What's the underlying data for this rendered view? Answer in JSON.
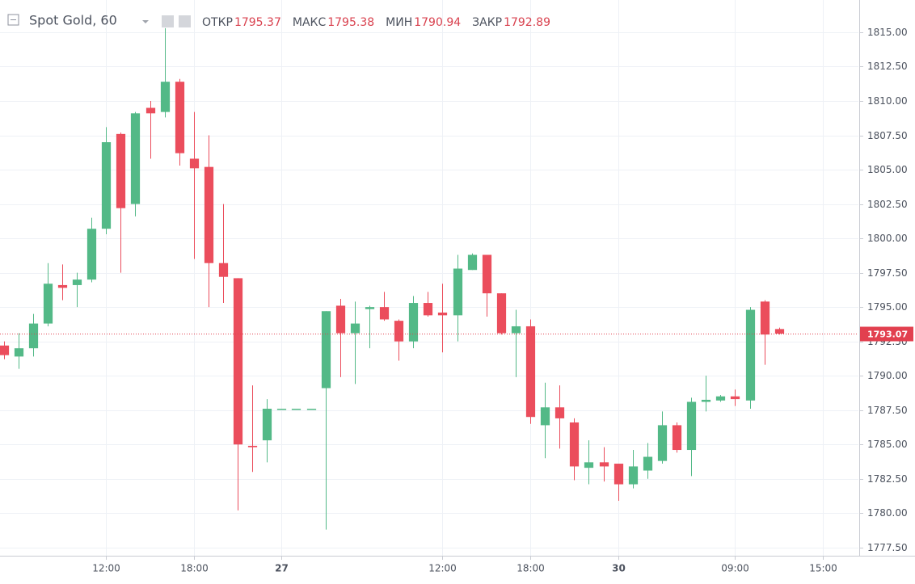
{
  "chart_data": {
    "type": "candlestick",
    "title": "Spot Gold, 60",
    "ohlc_labels": [
      {
        "label": "ОТКР",
        "value": 1795.37
      },
      {
        "label": "МАКС",
        "value": 1795.38
      },
      {
        "label": "МИН",
        "value": 1790.94
      },
      {
        "label": "ЗАКР",
        "value": 1792.89
      }
    ],
    "up_color": "#53b987",
    "down_color": "#eb4d5c",
    "open": [
      1792.2,
      1791.4,
      1792.0,
      1793.8,
      1796.6,
      1796.6,
      1797.0,
      1800.7,
      1807.6,
      1802.5,
      1809.5,
      1809.2,
      1811.4,
      1805.8,
      1805.2,
      1798.2,
      1797.1,
      1784.9,
      1785.3,
      1787.6,
      1787.6,
      1787.6,
      1789.1,
      1795.1,
      1793.1,
      1794.85,
      1795.0,
      1794.0,
      1792.5,
      1795.3,
      1794.6,
      1794.4,
      1797.7,
      1798.8,
      1796.0,
      1793.1,
      1793.6,
      1786.4,
      1787.7,
      1786.6,
      1783.3,
      1783.7,
      1783.6,
      1782.1,
      1783.1,
      1783.8,
      1786.4,
      1784.6,
      1788.1,
      1788.2,
      1788.5,
      1788.2,
      1795.4,
      1793.4
    ],
    "high": [
      1792.5,
      1793.1,
      1794.5,
      1798.2,
      1798.1,
      1797.5,
      1801.5,
      1808.1,
      1807.7,
      1809.2,
      1810.0,
      1815.3,
      1811.6,
      1809.2,
      1807.5,
      1802.5,
      1797.1,
      1789.3,
      1788.3,
      1787.6,
      1787.6,
      1787.6,
      1794.7,
      1795.6,
      1795.4,
      1795.1,
      1796.1,
      1794.1,
      1795.8,
      1796.1,
      1796.7,
      1798.8,
      1798.9,
      1798.8,
      1796.0,
      1794.8,
      1794.1,
      1789.5,
      1789.3,
      1786.9,
      1785.3,
      1784.8,
      1783.6,
      1784.6,
      1785.1,
      1787.4,
      1786.6,
      1788.4,
      1790.0,
      1788.6,
      1789.0,
      1795.0,
      1795.5,
      1793.5
    ],
    "low": [
      1791.2,
      1790.5,
      1791.4,
      1793.6,
      1795.5,
      1795.0,
      1796.8,
      1800.3,
      1797.5,
      1801.6,
      1805.8,
      1808.8,
      1805.3,
      1798.5,
      1795.0,
      1795.3,
      1780.2,
      1783.0,
      1783.7,
      1787.6,
      1787.6,
      1787.6,
      1778.8,
      1789.9,
      1789.4,
      1792.0,
      1794.0,
      1791.1,
      1792.0,
      1794.3,
      1791.7,
      1792.5,
      1797.7,
      1794.3,
      1793.0,
      1789.9,
      1786.5,
      1784.0,
      1784.7,
      1782.4,
      1782.1,
      1782.3,
      1780.9,
      1781.8,
      1782.5,
      1783.6,
      1784.4,
      1782.7,
      1787.4,
      1788.1,
      1787.8,
      1787.6,
      1790.8,
      1793.0
    ],
    "close": [
      1791.5,
      1792.0,
      1793.8,
      1796.7,
      1796.4,
      1797.0,
      1800.7,
      1807.0,
      1802.2,
      1809.1,
      1809.1,
      1811.4,
      1806.2,
      1805.1,
      1798.2,
      1797.2,
      1785.0,
      1784.8,
      1787.6,
      1787.6,
      1787.6,
      1787.6,
      1794.7,
      1793.1,
      1793.8,
      1795.0,
      1794.1,
      1792.5,
      1795.3,
      1794.4,
      1794.4,
      1797.8,
      1798.8,
      1796.0,
      1793.1,
      1793.6,
      1787.0,
      1787.7,
      1786.9,
      1783.4,
      1783.7,
      1783.4,
      1782.1,
      1783.4,
      1784.1,
      1786.4,
      1784.6,
      1788.1,
      1788.25,
      1788.5,
      1788.3,
      1794.8,
      1793.0,
      1793.07
    ],
    "last_price": {
      "value": 1793.07,
      "label": "1793.07"
    },
    "xlim": [
      -0.25,
      58.43
    ],
    "xticks": [
      {
        "value": 7,
        "label": "12:00"
      },
      {
        "value": 13,
        "label": "18:00"
      },
      {
        "value": 19,
        "label": "27"
      },
      {
        "value": 30,
        "label": "12:00"
      },
      {
        "value": 36,
        "label": "18:00"
      },
      {
        "value": 42,
        "label": "30"
      },
      {
        "value": 50,
        "label": "09:00"
      },
      {
        "value": 56,
        "label": "15:00"
      }
    ],
    "ylim": [
      1776.9,
      1817.35
    ],
    "yticks": [
      {
        "value": 1777.5,
        "label": "1777.50"
      },
      {
        "value": 1780,
        "label": "1780.00"
      },
      {
        "value": 1782.5,
        "label": "1782.50"
      },
      {
        "value": 1785,
        "label": "1785.00"
      },
      {
        "value": 1787.5,
        "label": "1787.50"
      },
      {
        "value": 1790,
        "label": "1790.00"
      },
      {
        "value": 1792.5,
        "label": "1792.50"
      },
      {
        "value": 1795,
        "label": "1795.00"
      },
      {
        "value": 1797.5,
        "label": "1797.50"
      },
      {
        "value": 1800,
        "label": "1800.00"
      },
      {
        "value": 1802.5,
        "label": "1802.50"
      },
      {
        "value": 1805,
        "label": "1805.00"
      },
      {
        "value": 1807.5,
        "label": "1807.50"
      },
      {
        "value": 1810,
        "label": "1810.00"
      },
      {
        "value": 1812.5,
        "label": "1812.50"
      },
      {
        "value": 1815,
        "label": "1815.00"
      }
    ],
    "grid": true
  }
}
